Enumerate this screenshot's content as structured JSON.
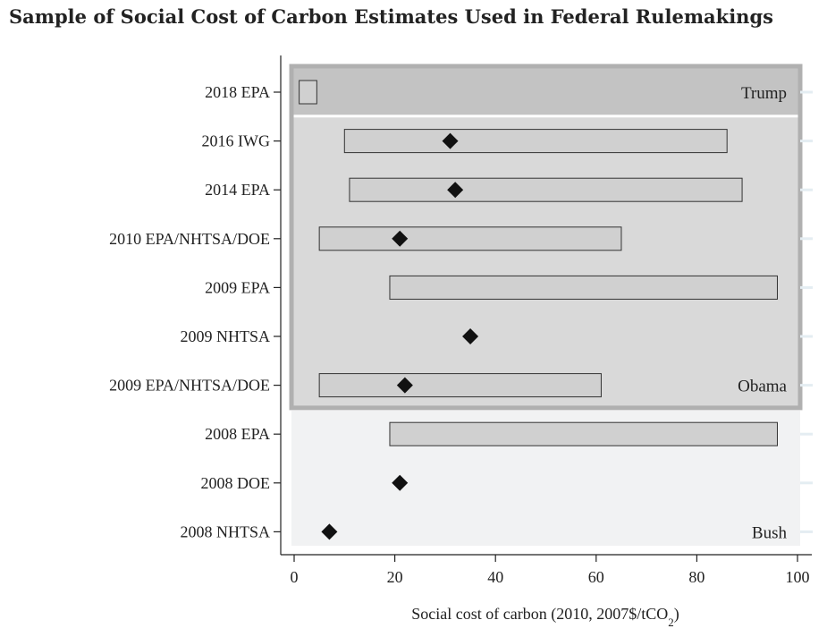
{
  "title": "Sample of Social Cost of Carbon Estimates Used in Federal Rulemakings",
  "chart_data": {
    "type": "bar",
    "title": "Sample of Social Cost of Carbon Estimates Used in Federal Rulemakings",
    "xlabel_main": "Social cost of carbon (2010, 2007$/tCO",
    "xlabel_sub": "2",
    "xlabel_tail": ")",
    "xlim": [
      0,
      100
    ],
    "xticks": [
      0,
      20,
      40,
      60,
      80,
      100
    ],
    "grid": false,
    "categories": [
      "2018 EPA",
      "2016 IWG",
      "2014 EPA",
      "2010 EPA/NHTSA/DOE",
      "2009 EPA",
      "2009 NHTSA",
      "2009 EPA/NHTSA/DOE",
      "2008 EPA",
      "2008 DOE",
      "2008 NHTSA"
    ],
    "ranges": [
      {
        "low": 1,
        "high": 4.5
      },
      {
        "low": 10,
        "high": 86
      },
      {
        "low": 11,
        "high": 89
      },
      {
        "low": 5,
        "high": 65
      },
      {
        "low": 19,
        "high": 96
      },
      null,
      {
        "low": 5,
        "high": 61
      },
      {
        "low": 19,
        "high": 96
      },
      null,
      null
    ],
    "central": [
      null,
      31,
      32,
      21,
      null,
      35,
      22,
      null,
      21,
      7
    ],
    "eras": [
      {
        "label": "Trump",
        "first": 0,
        "last": 0,
        "color": "#c3c3c3"
      },
      {
        "label": "Obama",
        "first": 1,
        "last": 6,
        "color": "#d9d9d9"
      },
      {
        "label": "Bush",
        "first": 7,
        "last": 9,
        "color": "#f1f2f3"
      }
    ],
    "colors": {
      "bar_fill": "#d0d0d0",
      "bar_stroke": "#333333",
      "marker": "#111111",
      "outer_frame": "#b0b0b0"
    }
  }
}
